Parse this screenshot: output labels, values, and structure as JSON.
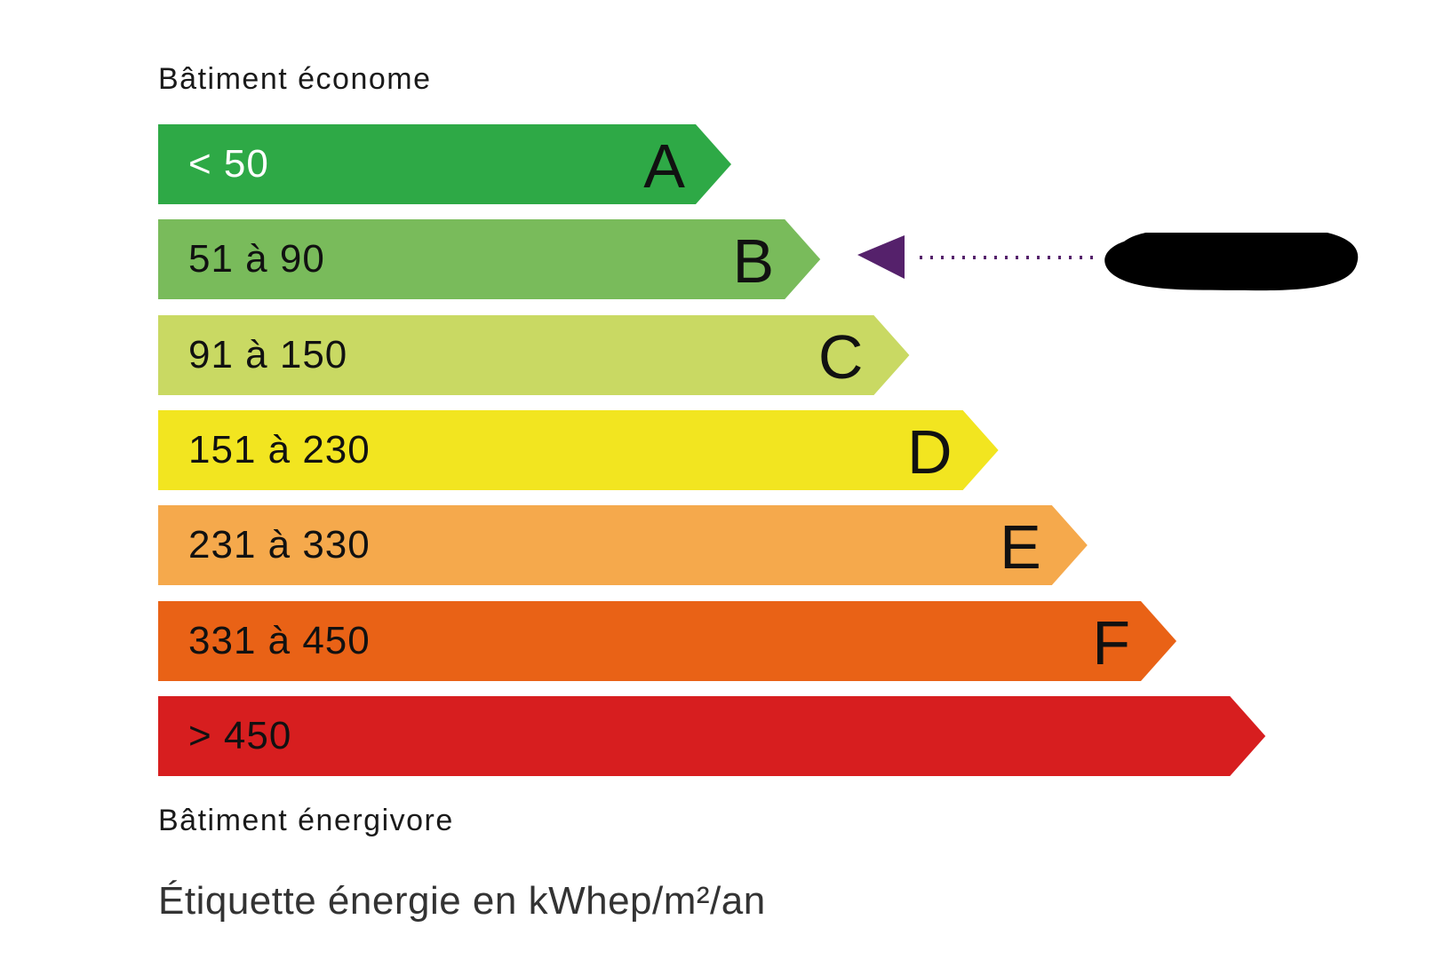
{
  "chart_data": {
    "type": "bar",
    "title": "Bâtiment économe",
    "footer": "Bâtiment énergivore",
    "unit_label": "Étiquette énergie en kWhep/m²/an",
    "classes": [
      {
        "letter": "A",
        "range": "< 50",
        "color": "#2ea946",
        "text_color": "#ffffff"
      },
      {
        "letter": "B",
        "range": "51 à 90",
        "color": "#79bb5b",
        "text_color": "#111111"
      },
      {
        "letter": "C",
        "range": "91 à 150",
        "color": "#c9d963",
        "text_color": "#111111"
      },
      {
        "letter": "D",
        "range": "151 à 230",
        "color": "#f2e520",
        "text_color": "#111111"
      },
      {
        "letter": "E",
        "range": "231 à 330",
        "color": "#f5a94c",
        "text_color": "#111111"
      },
      {
        "letter": "F",
        "range": "331 à 450",
        "color": "#e96216",
        "text_color": "#111111"
      },
      {
        "letter": "",
        "range": "> 450",
        "color": "#d71e1f",
        "text_color": "#111111"
      }
    ],
    "indicator": {
      "class": "B",
      "color": "#55216b",
      "value_redacted": true
    }
  }
}
